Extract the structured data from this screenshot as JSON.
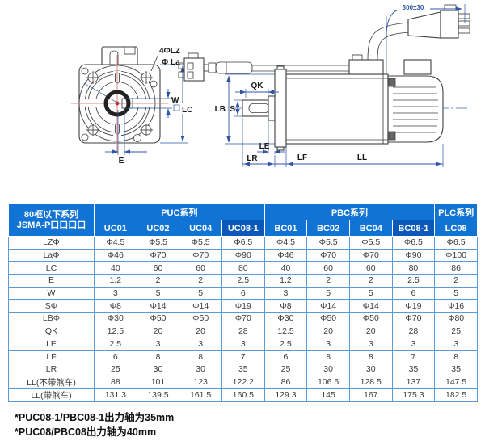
{
  "drawing": {
    "labels": {
      "front": {
        "bolt_holes": "4ΦLZ",
        "flange_dia": "Φ La",
        "keyway_width": "W",
        "frame": "LC",
        "shaft_offset": "E"
      },
      "side": {
        "key_length": "QK",
        "pilot_dia": "LB",
        "shaft_dia": "S",
        "boss_len": "LE",
        "shaft_len": "LR",
        "flange_thk": "LF",
        "body_len": "LL",
        "cable_len": "300±30"
      }
    }
  },
  "table": {
    "corner": {
      "line1": "80框以下系列",
      "line2": "JSMA-P口口口口"
    },
    "groups": [
      {
        "label": "PUC系列",
        "span": 4
      },
      {
        "label": "PBC系列",
        "span": 4
      },
      {
        "label": "PLC系列",
        "span": 1
      }
    ],
    "columns": [
      "UC01",
      "UC02",
      "UC04",
      "UC08-1",
      "BC01",
      "BC02",
      "BC04",
      "BC08-1",
      "LC08"
    ],
    "highlight_columns": [
      "UC08-1",
      "BC08-1"
    ],
    "rows": [
      {
        "label": "LZΦ",
        "values": [
          "Φ4.5",
          "Φ5.5",
          "Φ5.5",
          "Φ6.5",
          "Φ4.5",
          "Φ5.5",
          "Φ5.5",
          "Φ6.5",
          "Φ6.5"
        ]
      },
      {
        "label": "LaΦ",
        "values": [
          "Φ46",
          "Φ70",
          "Φ70",
          "Φ90",
          "Φ46",
          "Φ70",
          "Φ70",
          "Φ90",
          "Φ100"
        ]
      },
      {
        "label": "LC",
        "values": [
          "40",
          "60",
          "60",
          "80",
          "40",
          "60",
          "60",
          "80",
          "86"
        ]
      },
      {
        "label": "E",
        "values": [
          "1.2",
          "2",
          "2",
          "2.5",
          "1.2",
          "2",
          "2",
          "2.5",
          "2"
        ]
      },
      {
        "label": "W",
        "values": [
          "3",
          "5",
          "5",
          "6",
          "3",
          "5",
          "5",
          "6",
          "5"
        ]
      },
      {
        "label": "SΦ",
        "values": [
          "Φ8",
          "Φ14",
          "Φ14",
          "Φ19",
          "Φ8",
          "Φ14",
          "Φ14",
          "Φ19",
          "Φ16"
        ]
      },
      {
        "label": "LBΦ",
        "values": [
          "Φ30",
          "Φ50",
          "Φ50",
          "Φ70",
          "Φ30",
          "Φ50",
          "Φ50",
          "Φ70",
          "Φ80"
        ]
      },
      {
        "label": "QK",
        "values": [
          "12.5",
          "20",
          "20",
          "28",
          "12.5",
          "20",
          "20",
          "28",
          "25"
        ]
      },
      {
        "label": "LE",
        "values": [
          "2.5",
          "3",
          "3",
          "3",
          "2.5",
          "3",
          "3",
          "3",
          "3"
        ]
      },
      {
        "label": "LF",
        "values": [
          "6",
          "8",
          "8",
          "7",
          "6",
          "8",
          "8",
          "7",
          "8"
        ]
      },
      {
        "label": "LR",
        "values": [
          "25",
          "30",
          "30",
          "35",
          "25",
          "30",
          "30",
          "35",
          "35"
        ]
      },
      {
        "label": "LL(不带煞车)",
        "values": [
          "88",
          "101",
          "123",
          "122.2",
          "86",
          "106.5",
          "128.5",
          "137",
          "147.5"
        ]
      },
      {
        "label": "LL(带煞车)",
        "values": [
          "131.3",
          "139.5",
          "161.5",
          "160.5",
          "129.3",
          "145",
          "167",
          "175.3",
          "182.5"
        ]
      }
    ]
  },
  "footnotes": [
    "*PUC08-1/PBC08-1出力轴为35mm",
    "*PUC08/PBC08出力轴为40mm"
  ],
  "colors": {
    "header_blue": "#1173d4",
    "header_dark_blue": "#0a58b8",
    "grid_blue": "#5c9ad8",
    "dimension_blue": "#2f54a8",
    "centerline_red": "#dd8a8a",
    "outline_gray": "#3f3f3f"
  }
}
